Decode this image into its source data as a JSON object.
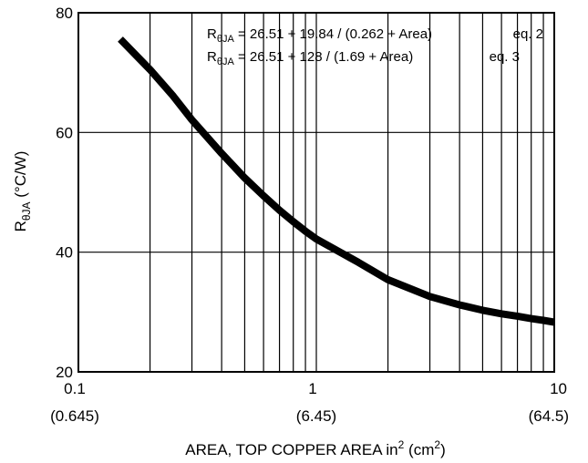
{
  "chart_data": {
    "type": "line",
    "x_scale": "log",
    "xlim": [
      0.1,
      10
    ],
    "ylim": [
      20,
      80
    ],
    "x_ticks": [
      {
        "value": 0.1,
        "label": "0.1",
        "sublabel": "(0.645)"
      },
      {
        "value": 1,
        "label": "1",
        "sublabel": "(6.45)"
      },
      {
        "value": 10,
        "label": "10",
        "sublabel": "(64.5)"
      }
    ],
    "y_ticks": [
      {
        "value": 20,
        "label": "20"
      },
      {
        "value": 40,
        "label": "40"
      },
      {
        "value": 60,
        "label": "60"
      },
      {
        "value": 80,
        "label": "80"
      }
    ],
    "grid": true,
    "xlabel": {
      "main": "AREA, TOP COPPER AREA in",
      "sup1": "2",
      "mid": " (cm",
      "sup2": "2",
      "end": ")"
    },
    "ylabel": {
      "main": "R",
      "sub": "θJA",
      "rest": " (°C/W)"
    },
    "annotations": [
      {
        "symbol": "R",
        "sub": "θJA",
        "formula": " = 26.51 + 19.84 / (0.262 + Area)",
        "tag": "eq. 2"
      },
      {
        "symbol": "R",
        "sub": "θJA",
        "formula": " = 26.51 + 128 / (1.69 + Area)",
        "tag": "eq. 3"
      }
    ],
    "series": [
      {
        "x": [
          0.15,
          0.2,
          0.25,
          0.3,
          0.4,
          0.5,
          0.6,
          0.7,
          0.8,
          0.9,
          1.0,
          1.5,
          2,
          3,
          4,
          5,
          6,
          7,
          8,
          9,
          10
        ],
        "y": [
          75.6,
          70.5,
          66.1,
          62.1,
          56.5,
          52.4,
          49.4,
          47.0,
          45.1,
          43.5,
          42.2,
          38.3,
          35.4,
          32.6,
          31.2,
          30.3,
          29.7,
          29.3,
          28.9,
          28.6,
          28.3
        ]
      }
    ]
  }
}
